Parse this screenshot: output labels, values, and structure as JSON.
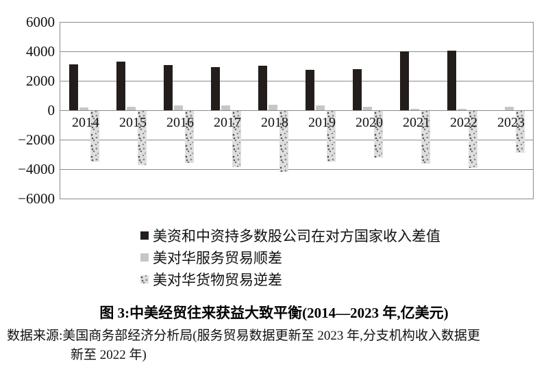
{
  "chart_data": {
    "type": "bar",
    "title": "图 3:中美经贸往来获益大致平衡(2014—2023 年,亿美元)",
    "categories": [
      "2014",
      "2015",
      "2016",
      "2017",
      "2018",
      "2019",
      "2020",
      "2021",
      "2022",
      "2023"
    ],
    "series": [
      {
        "name": "美资和中资持多数股公司在对方国家收入差值",
        "key": "income-gap",
        "color": "#231d1b",
        "values": [
          3150,
          3340,
          3100,
          2980,
          3070,
          2800,
          2830,
          4050,
          4090,
          null
        ]
      },
      {
        "name": "美对华服务贸易顺差",
        "key": "services-surplus",
        "color": "#c6c6c6",
        "values": [
          200,
          250,
          340,
          360,
          380,
          360,
          240,
          140,
          100,
          260
        ]
      },
      {
        "name": "美对华货物贸易逆差",
        "key": "goods-deficit",
        "color": "#dedede",
        "values": [
          -3460,
          -3720,
          -3560,
          -3850,
          -4190,
          -3500,
          -3180,
          -3600,
          -3900,
          -2870
        ]
      }
    ],
    "ylim": [
      -6000,
      6000
    ],
    "y_tick_interval": 2000,
    "y_ticks": [
      "6000",
      "4000",
      "2000",
      "0",
      "−2000",
      "−4000",
      "−6000"
    ],
    "grid": "horizontal",
    "legend_position": "below-left",
    "gridline_color": "#8b8b8b"
  },
  "source": {
    "line1": "数据来源:美国商务部经济分析局(服务贸易数据更新至 2023 年,分支机构收入数据更",
    "line2": "新至 2022 年)"
  }
}
